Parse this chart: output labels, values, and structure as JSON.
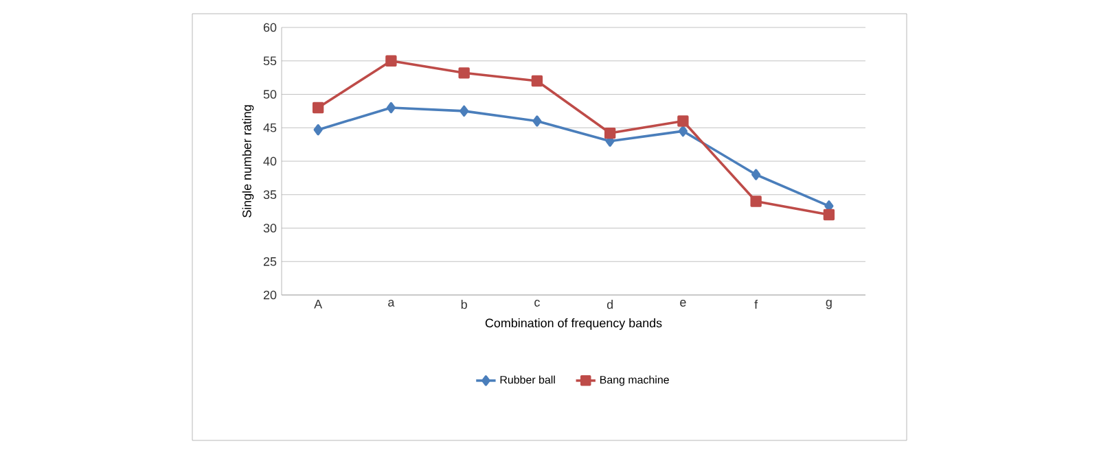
{
  "chart_data": {
    "type": "line",
    "xlabel": "Combination of frequency bands",
    "ylabel": "Single number rating",
    "categories": [
      "A",
      "a",
      "b",
      "c",
      "d",
      "e",
      "f",
      "g"
    ],
    "series": [
      {
        "name": "Rubber ball",
        "color": "#4a7ebb",
        "marker": "diamond",
        "values": [
          44.7,
          48,
          47.5,
          46,
          43,
          44.5,
          38,
          33.3
        ]
      },
      {
        "name": "Bang machine",
        "color": "#be4b48",
        "marker": "square",
        "values": [
          48,
          55,
          53.2,
          52,
          44.2,
          46,
          34,
          32
        ]
      }
    ],
    "ylim": [
      20,
      60
    ],
    "yticks": [
      20,
      25,
      30,
      35,
      40,
      45,
      50,
      55,
      60
    ],
    "grid": "y",
    "legend": "bottom"
  }
}
